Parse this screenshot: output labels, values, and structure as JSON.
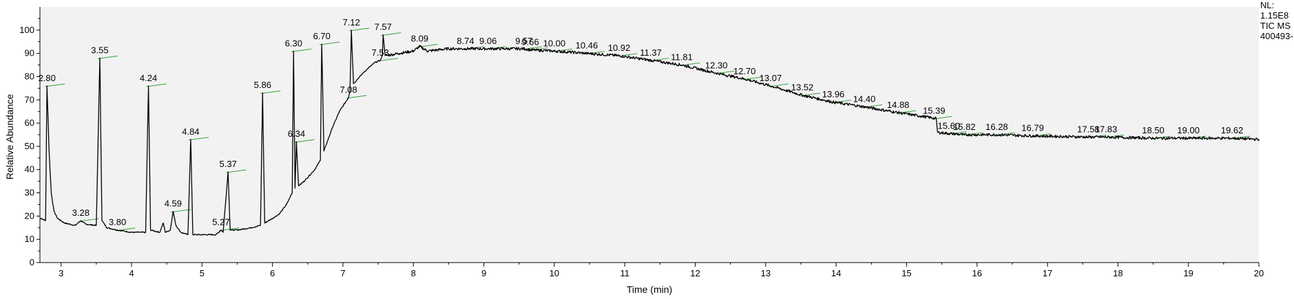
{
  "chart_data": {
    "type": "line",
    "xlabel": "Time (min)",
    "ylabel": "Relative Abundance",
    "xlim": [
      2.7,
      20.0
    ],
    "ylim": [
      0,
      110
    ],
    "x_ticks": [
      3,
      4,
      5,
      6,
      7,
      8,
      9,
      10,
      11,
      12,
      13,
      14,
      15,
      16,
      17,
      18,
      19,
      20
    ],
    "y_ticks": [
      0,
      10,
      20,
      30,
      40,
      50,
      60,
      70,
      80,
      90,
      100
    ],
    "background_color": "#f2f2f2",
    "line_color": "#000000",
    "peak_mark_color": "#39a039",
    "info": [
      "NL:",
      "1.15E8",
      "TIC  MS",
      "400493-"
    ],
    "series": [
      {
        "values": [
          [
            2.72,
            19
          ],
          [
            2.78,
            18
          ],
          [
            2.8,
            76
          ],
          [
            2.83,
            48
          ],
          [
            2.86,
            30
          ],
          [
            2.9,
            22
          ],
          [
            2.95,
            19
          ],
          [
            3.05,
            17
          ],
          [
            3.2,
            16
          ],
          [
            3.28,
            18
          ],
          [
            3.35,
            16.5
          ],
          [
            3.5,
            16
          ],
          [
            3.55,
            88
          ],
          [
            3.58,
            18
          ],
          [
            3.65,
            15
          ],
          [
            3.8,
            14
          ],
          [
            4.0,
            13
          ],
          [
            4.2,
            13
          ],
          [
            4.24,
            76
          ],
          [
            4.27,
            14
          ],
          [
            4.4,
            13
          ],
          [
            4.45,
            17
          ],
          [
            4.48,
            13
          ],
          [
            4.55,
            14
          ],
          [
            4.59,
            22
          ],
          [
            4.63,
            16
          ],
          [
            4.7,
            13
          ],
          [
            4.8,
            12
          ],
          [
            4.84,
            53
          ],
          [
            4.87,
            12
          ],
          [
            5.0,
            12
          ],
          [
            5.2,
            12
          ],
          [
            5.27,
            14
          ],
          [
            5.3,
            13
          ],
          [
            5.37,
            39
          ],
          [
            5.4,
            14
          ],
          [
            5.5,
            14
          ],
          [
            5.7,
            15
          ],
          [
            5.83,
            16
          ],
          [
            5.86,
            73
          ],
          [
            5.89,
            17
          ],
          [
            6.0,
            19
          ],
          [
            6.1,
            21
          ],
          [
            6.2,
            25
          ],
          [
            6.28,
            30
          ],
          [
            6.3,
            91
          ],
          [
            6.32,
            32
          ],
          [
            6.34,
            52
          ],
          [
            6.37,
            33
          ],
          [
            6.45,
            35
          ],
          [
            6.6,
            40
          ],
          [
            6.68,
            44
          ],
          [
            6.7,
            94
          ],
          [
            6.73,
            48
          ],
          [
            6.85,
            58
          ],
          [
            6.95,
            65
          ],
          [
            7.08,
            71
          ],
          [
            7.1,
            74
          ],
          [
            7.12,
            100
          ],
          [
            7.15,
            77
          ],
          [
            7.3,
            82
          ],
          [
            7.45,
            86
          ],
          [
            7.53,
            87
          ],
          [
            7.56,
            89
          ],
          [
            7.57,
            98
          ],
          [
            7.6,
            89
          ],
          [
            7.8,
            90
          ],
          [
            8.0,
            91
          ],
          [
            8.09,
            93
          ],
          [
            8.2,
            91
          ],
          [
            8.5,
            92
          ],
          [
            8.74,
            92
          ],
          [
            9.06,
            92
          ],
          [
            9.3,
            92
          ],
          [
            9.57,
            92
          ],
          [
            9.66,
            91.5
          ],
          [
            10.0,
            91
          ],
          [
            10.46,
            90
          ],
          [
            10.92,
            89
          ],
          [
            11.37,
            87
          ],
          [
            11.81,
            85
          ],
          [
            12.3,
            81.5
          ],
          [
            12.7,
            79
          ],
          [
            13.07,
            76
          ],
          [
            13.52,
            72
          ],
          [
            13.96,
            69
          ],
          [
            14.4,
            67
          ],
          [
            14.88,
            64.5
          ],
          [
            15.2,
            63
          ],
          [
            15.42,
            62
          ],
          [
            15.44,
            56
          ],
          [
            15.6,
            55.5
          ],
          [
            15.82,
            55
          ],
          [
            16.28,
            55
          ],
          [
            16.79,
            54.5
          ],
          [
            17.58,
            54
          ],
          [
            17.83,
            54
          ],
          [
            18.5,
            53.5
          ],
          [
            19.0,
            53.5
          ],
          [
            19.62,
            53.5
          ],
          [
            20.0,
            53
          ]
        ]
      }
    ],
    "peaks": [
      {
        "rt": 2.8,
        "label": "2.80",
        "abundance": 76
      },
      {
        "rt": 3.28,
        "label": "3.28",
        "abundance": 18
      },
      {
        "rt": 3.55,
        "label": "3.55",
        "abundance": 88
      },
      {
        "rt": 3.8,
        "label": "3.80",
        "abundance": 14
      },
      {
        "rt": 4.24,
        "label": "4.24",
        "abundance": 76
      },
      {
        "rt": 4.59,
        "label": "4.59",
        "abundance": 22
      },
      {
        "rt": 4.84,
        "label": "4.84",
        "abundance": 53
      },
      {
        "rt": 5.27,
        "label": "5.27",
        "abundance": 14
      },
      {
        "rt": 5.37,
        "label": "5.37",
        "abundance": 39
      },
      {
        "rt": 5.86,
        "label": "5.86",
        "abundance": 73
      },
      {
        "rt": 6.3,
        "label": "6.30",
        "abundance": 91
      },
      {
        "rt": 6.34,
        "label": "6.34",
        "abundance": 52
      },
      {
        "rt": 6.7,
        "label": "6.70",
        "abundance": 94
      },
      {
        "rt": 7.08,
        "label": "7.08",
        "abundance": 71
      },
      {
        "rt": 7.12,
        "label": "7.12",
        "abundance": 100
      },
      {
        "rt": 7.53,
        "label": "7.53",
        "abundance": 87
      },
      {
        "rt": 7.57,
        "label": "7.57",
        "abundance": 98
      },
      {
        "rt": 8.09,
        "label": "8.09",
        "abundance": 93
      },
      {
        "rt": 8.74,
        "label": "8.74",
        "abundance": 92
      },
      {
        "rt": 9.06,
        "label": "9.06",
        "abundance": 92
      },
      {
        "rt": 9.57,
        "label": "9.57",
        "abundance": 92
      },
      {
        "rt": 9.66,
        "label": "9.66",
        "abundance": 91.5
      },
      {
        "rt": 10.0,
        "label": "10.00",
        "abundance": 91
      },
      {
        "rt": 10.46,
        "label": "10.46",
        "abundance": 90
      },
      {
        "rt": 10.92,
        "label": "10.92",
        "abundance": 89
      },
      {
        "rt": 11.37,
        "label": "11.37",
        "abundance": 87
      },
      {
        "rt": 11.81,
        "label": "11.81",
        "abundance": 85
      },
      {
        "rt": 12.3,
        "label": "12.30",
        "abundance": 81.5
      },
      {
        "rt": 12.7,
        "label": "12.70",
        "abundance": 79
      },
      {
        "rt": 13.07,
        "label": "13.07",
        "abundance": 76
      },
      {
        "rt": 13.52,
        "label": "13.52",
        "abundance": 72
      },
      {
        "rt": 13.96,
        "label": "13.96",
        "abundance": 69
      },
      {
        "rt": 14.4,
        "label": "14.40",
        "abundance": 67
      },
      {
        "rt": 14.88,
        "label": "14.88",
        "abundance": 64.5
      },
      {
        "rt": 15.39,
        "label": "15.39",
        "abundance": 62
      },
      {
        "rt": 15.6,
        "label": "15.60",
        "abundance": 55.5
      },
      {
        "rt": 15.82,
        "label": "15.82",
        "abundance": 55
      },
      {
        "rt": 16.28,
        "label": "16.28",
        "abundance": 55
      },
      {
        "rt": 16.79,
        "label": "16.79",
        "abundance": 54.5
      },
      {
        "rt": 17.58,
        "label": "17.58",
        "abundance": 54
      },
      {
        "rt": 17.83,
        "label": "17.83",
        "abundance": 54
      },
      {
        "rt": 18.5,
        "label": "18.50",
        "abundance": 53.5
      },
      {
        "rt": 19.0,
        "label": "19.00",
        "abundance": 53.5
      },
      {
        "rt": 19.62,
        "label": "19.62",
        "abundance": 53.5
      }
    ]
  }
}
